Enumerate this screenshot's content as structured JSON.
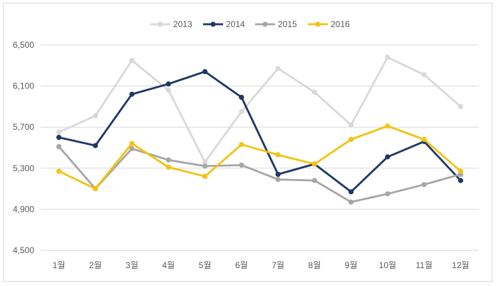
{
  "chart_data": {
    "type": "line",
    "title": "",
    "xlabel": "",
    "ylabel": "",
    "categories": [
      "1월",
      "2월",
      "3월",
      "4월",
      "5월",
      "6월",
      "7월",
      "8월",
      "9월",
      "10월",
      "11월",
      "12월"
    ],
    "ylim": [
      4500,
      6500
    ],
    "yticks": [
      4500,
      4900,
      5300,
      5700,
      6100,
      6500
    ],
    "ytick_labels": [
      "4,500",
      "4,900",
      "5,300",
      "5,700",
      "6,100",
      "6,500"
    ],
    "grid": true,
    "legend_position": "top",
    "series": [
      {
        "name": "2013",
        "color": "#d9d9d9",
        "values": [
          5650,
          5810,
          6350,
          6060,
          5360,
          5850,
          6270,
          6040,
          5720,
          6380,
          6210,
          5900
        ]
      },
      {
        "name": "2014",
        "color": "#1f3864",
        "values": [
          5600,
          5520,
          6020,
          6120,
          6240,
          5990,
          5240,
          5340,
          5070,
          5410,
          5560,
          5180
        ]
      },
      {
        "name": "2015",
        "color": "#a6a6a6",
        "values": [
          5510,
          5100,
          5490,
          5380,
          5320,
          5330,
          5190,
          5180,
          4970,
          5050,
          5140,
          5240
        ]
      },
      {
        "name": "2016",
        "color": "#f2c314",
        "values": [
          5270,
          5100,
          5540,
          5310,
          5220,
          5530,
          5430,
          5340,
          5580,
          5710,
          5580,
          5270
        ]
      }
    ]
  }
}
